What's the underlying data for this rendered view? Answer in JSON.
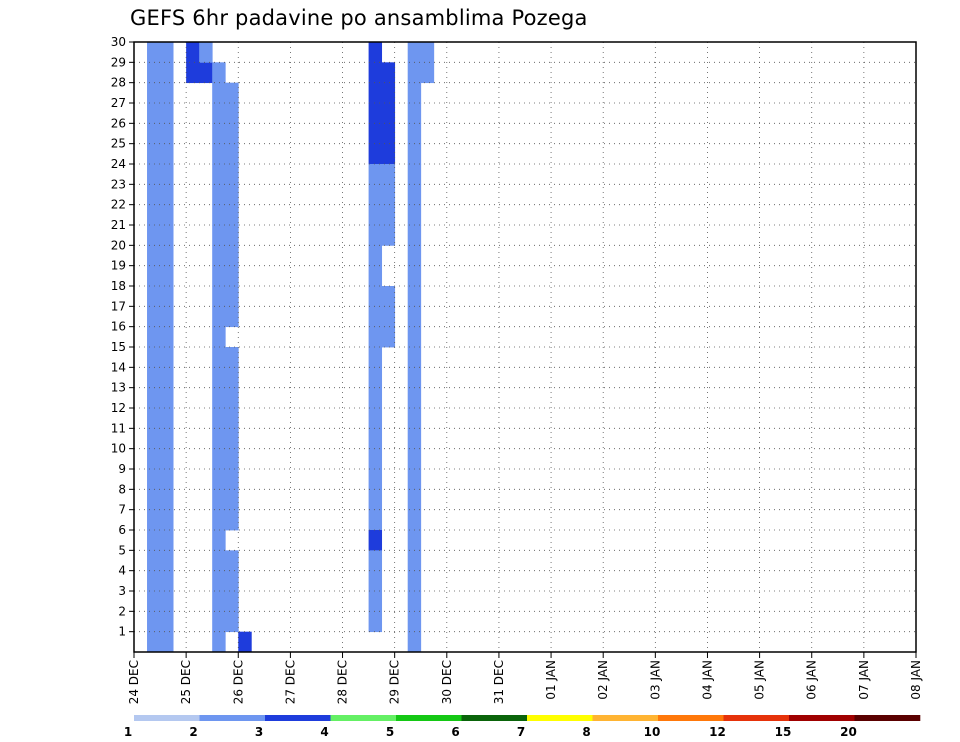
{
  "chart_data": {
    "type": "heatmap",
    "title": "GEFS 6hr padavine po ansamblima Pozega",
    "x_ticks": [
      "24 DEC",
      "25 DEC",
      "26 DEC",
      "27 DEC",
      "28 DEC",
      "29 DEC",
      "30 DEC",
      "31 DEC",
      "01 JAN",
      "02 JAN",
      "03 JAN",
      "04 JAN",
      "05 JAN",
      "06 JAN",
      "07 JAN",
      "08 JAN"
    ],
    "y_ticks": [
      1,
      2,
      3,
      4,
      5,
      6,
      7,
      8,
      9,
      10,
      11,
      12,
      13,
      14,
      15,
      16,
      17,
      18,
      19,
      20,
      21,
      22,
      23,
      24,
      25,
      26,
      27,
      28,
      29,
      30
    ],
    "xlim_days": [
      0,
      15
    ],
    "ylim_member": [
      0,
      30
    ],
    "grid": true,
    "legend": {
      "position": "bottom",
      "levels": [
        "1",
        "2",
        "3",
        "4",
        "5",
        "6",
        "7",
        "8",
        "10",
        "12",
        "15",
        "20"
      ],
      "colors": [
        "#b4c8f0",
        "#6e96f0",
        "#1e3cdc",
        "#64f064",
        "#14c814",
        "#0a640a",
        "#ffff00",
        "#ffb432",
        "#ff780a",
        "#e6320a",
        "#a00000",
        "#5a0000"
      ]
    },
    "cells_format": "[6-hour step from 24 DEC 00Z, ensemble member, color level index 0-11]",
    "cells": [
      [
        8,
        1,
        2
      ],
      [
        18,
        30,
        2
      ],
      [
        18,
        29,
        2
      ],
      [
        19,
        29,
        2
      ],
      [
        18,
        28,
        2
      ],
      [
        19,
        28,
        2
      ],
      [
        18,
        27,
        2
      ],
      [
        19,
        27,
        2
      ],
      [
        18,
        26,
        2
      ],
      [
        19,
        26,
        2
      ],
      [
        18,
        25,
        2
      ],
      [
        19,
        25,
        2
      ],
      [
        18,
        24,
        1
      ],
      [
        19,
        24,
        1
      ],
      [
        18,
        23,
        1
      ],
      [
        19,
        23,
        1
      ],
      [
        18,
        22,
        1
      ],
      [
        19,
        22,
        1
      ],
      [
        18,
        21,
        1
      ],
      [
        19,
        21,
        1
      ],
      [
        18,
        20,
        1
      ],
      [
        18,
        19,
        1
      ],
      [
        18,
        18,
        1
      ],
      [
        19,
        18,
        1
      ],
      [
        18,
        17,
        1
      ],
      [
        19,
        17,
        1
      ],
      [
        18,
        16,
        1
      ],
      [
        19,
        16,
        1
      ],
      [
        18,
        15,
        1
      ],
      [
        18,
        14,
        1
      ],
      [
        18,
        13,
        1
      ],
      [
        18,
        12,
        1
      ],
      [
        18,
        11,
        1
      ],
      [
        18,
        10,
        1
      ],
      [
        18,
        9,
        1
      ],
      [
        18,
        8,
        1
      ],
      [
        18,
        7,
        1
      ],
      [
        18,
        6,
        2
      ],
      [
        18,
        5,
        1
      ],
      [
        18,
        4,
        1
      ],
      [
        18,
        3,
        1
      ],
      [
        18,
        2,
        1
      ],
      [
        21,
        30,
        1
      ],
      [
        22,
        30,
        1
      ],
      [
        21,
        29,
        1
      ],
      [
        22,
        29,
        1
      ],
      [
        21,
        28,
        1
      ],
      [
        21,
        27,
        1
      ],
      [
        21,
        26,
        1
      ],
      [
        21,
        25,
        1
      ],
      [
        21,
        24,
        1
      ],
      [
        21,
        23,
        1
      ],
      [
        21,
        22,
        1
      ],
      [
        21,
        21,
        1
      ],
      [
        21,
        20,
        1
      ],
      [
        21,
        19,
        1
      ],
      [
        21,
        18,
        1
      ],
      [
        21,
        17,
        1
      ],
      [
        21,
        16,
        1
      ],
      [
        21,
        15,
        1
      ],
      [
        21,
        14,
        1
      ],
      [
        21,
        13,
        1
      ],
      [
        21,
        12,
        1
      ],
      [
        21,
        11,
        1
      ],
      [
        21,
        10,
        1
      ],
      [
        21,
        9,
        1
      ],
      [
        21,
        8,
        1
      ],
      [
        21,
        7,
        1
      ],
      [
        21,
        6,
        1
      ],
      [
        21,
        5,
        1
      ],
      [
        21,
        4,
        1
      ],
      [
        21,
        3,
        1
      ],
      [
        21,
        2,
        1
      ],
      [
        21,
        1,
        1
      ],
      [
        4,
        30,
        2
      ],
      [
        4,
        29,
        2
      ],
      [
        5,
        29,
        2
      ],
      [
        5,
        30,
        1
      ],
      [
        6,
        29,
        1
      ],
      [
        6,
        28,
        1
      ],
      [
        7,
        28,
        1
      ],
      [
        6,
        27,
        1
      ],
      [
        7,
        27,
        1
      ],
      [
        6,
        26,
        1
      ],
      [
        7,
        26,
        1
      ],
      [
        6,
        25,
        1
      ],
      [
        7,
        25,
        1
      ],
      [
        6,
        24,
        1
      ],
      [
        7,
        24,
        1
      ],
      [
        6,
        23,
        1
      ],
      [
        7,
        23,
        1
      ],
      [
        6,
        22,
        1
      ],
      [
        7,
        22,
        1
      ],
      [
        6,
        21,
        1
      ],
      [
        7,
        21,
        1
      ],
      [
        6,
        20,
        1
      ],
      [
        7,
        20,
        1
      ],
      [
        6,
        19,
        1
      ],
      [
        7,
        19,
        1
      ],
      [
        6,
        18,
        1
      ],
      [
        7,
        18,
        1
      ],
      [
        6,
        17,
        1
      ],
      [
        7,
        17,
        1
      ],
      [
        6,
        16,
        1
      ],
      [
        6,
        15,
        1
      ],
      [
        7,
        15,
        1
      ],
      [
        6,
        14,
        1
      ],
      [
        7,
        14,
        1
      ],
      [
        6,
        13,
        1
      ],
      [
        7,
        13,
        1
      ],
      [
        6,
        12,
        1
      ],
      [
        7,
        12,
        1
      ],
      [
        6,
        11,
        1
      ],
      [
        7,
        11,
        1
      ],
      [
        6,
        10,
        1
      ],
      [
        7,
        10,
        1
      ],
      [
        6,
        9,
        1
      ],
      [
        7,
        9,
        1
      ],
      [
        6,
        8,
        1
      ],
      [
        7,
        8,
        1
      ],
      [
        6,
        7,
        1
      ],
      [
        7,
        7,
        1
      ],
      [
        6,
        6,
        1
      ],
      [
        6,
        5,
        1
      ],
      [
        7,
        5,
        1
      ],
      [
        6,
        4,
        1
      ],
      [
        7,
        4,
        1
      ],
      [
        6,
        3,
        1
      ],
      [
        7,
        3,
        1
      ],
      [
        6,
        2,
        1
      ],
      [
        7,
        2,
        1
      ],
      [
        6,
        1,
        1
      ],
      [
        1,
        1,
        1
      ],
      [
        2,
        1,
        1
      ],
      [
        1,
        2,
        1
      ],
      [
        2,
        2,
        1
      ],
      [
        1,
        3,
        1
      ],
      [
        2,
        3,
        1
      ],
      [
        1,
        4,
        1
      ],
      [
        2,
        4,
        1
      ],
      [
        1,
        5,
        1
      ],
      [
        2,
        5,
        1
      ],
      [
        1,
        6,
        1
      ],
      [
        2,
        6,
        1
      ],
      [
        1,
        7,
        1
      ],
      [
        2,
        7,
        1
      ],
      [
        1,
        8,
        1
      ],
      [
        2,
        8,
        1
      ],
      [
        1,
        9,
        1
      ],
      [
        2,
        9,
        1
      ],
      [
        1,
        10,
        1
      ],
      [
        2,
        10,
        1
      ],
      [
        1,
        11,
        1
      ],
      [
        2,
        11,
        1
      ],
      [
        1,
        12,
        1
      ],
      [
        2,
        12,
        1
      ],
      [
        1,
        13,
        1
      ],
      [
        2,
        13,
        1
      ],
      [
        1,
        14,
        1
      ],
      [
        2,
        14,
        1
      ],
      [
        1,
        15,
        1
      ],
      [
        2,
        15,
        1
      ],
      [
        1,
        16,
        1
      ],
      [
        2,
        16,
        1
      ],
      [
        1,
        17,
        1
      ],
      [
        2,
        17,
        1
      ],
      [
        1,
        18,
        1
      ],
      [
        2,
        18,
        1
      ],
      [
        1,
        19,
        1
      ],
      [
        2,
        19,
        1
      ],
      [
        1,
        20,
        1
      ],
      [
        2,
        20,
        1
      ],
      [
        1,
        21,
        1
      ],
      [
        2,
        21,
        1
      ],
      [
        1,
        22,
        1
      ],
      [
        2,
        22,
        1
      ],
      [
        1,
        23,
        1
      ],
      [
        2,
        23,
        1
      ],
      [
        1,
        24,
        1
      ],
      [
        2,
        24,
        1
      ],
      [
        1,
        25,
        1
      ],
      [
        2,
        25,
        1
      ],
      [
        1,
        26,
        1
      ],
      [
        2,
        26,
        1
      ],
      [
        1,
        27,
        1
      ],
      [
        2,
        27,
        1
      ],
      [
        1,
        28,
        1
      ],
      [
        2,
        28,
        1
      ],
      [
        1,
        29,
        1
      ],
      [
        2,
        29,
        1
      ],
      [
        1,
        30,
        1
      ],
      [
        2,
        30,
        1
      ]
    ]
  }
}
